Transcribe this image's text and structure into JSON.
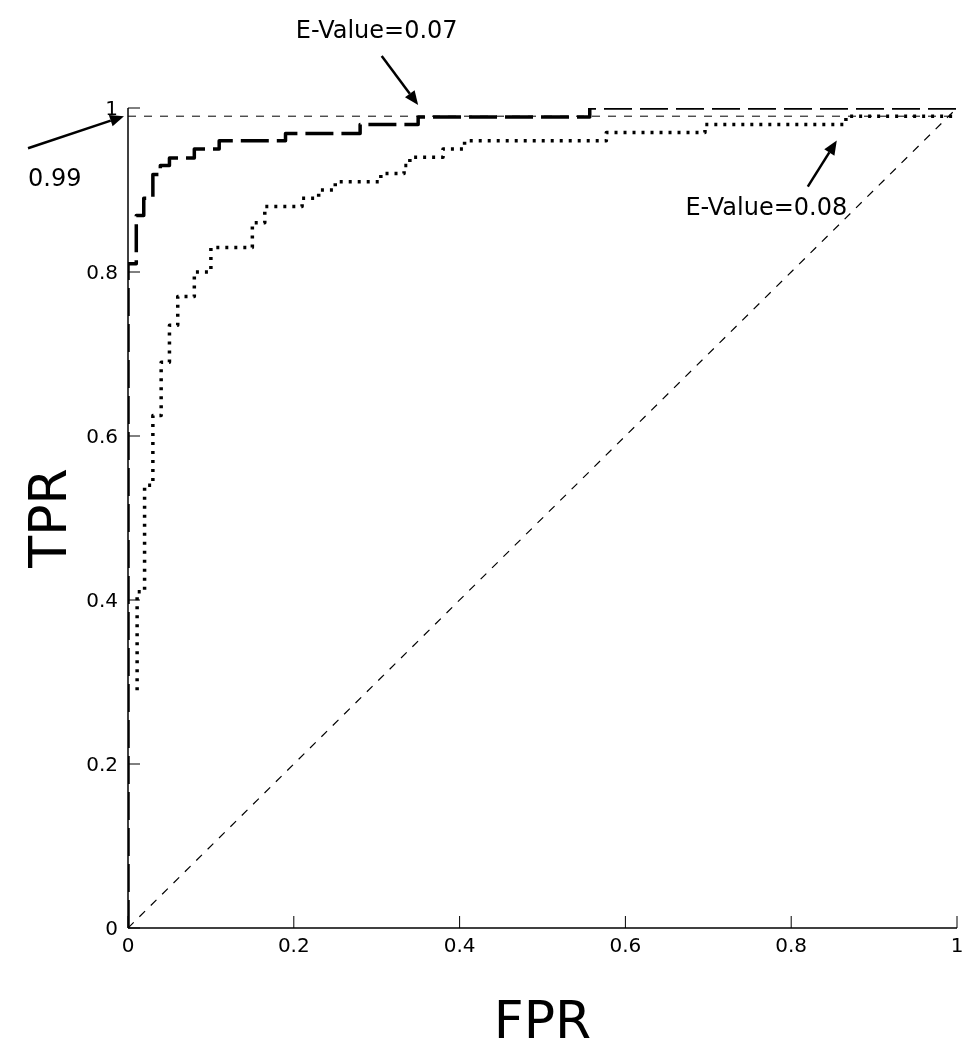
{
  "chart_data": {
    "type": "line",
    "xlabel": "FPR",
    "ylabel": "TPR",
    "xlim": [
      0,
      1
    ],
    "ylim": [
      0,
      1
    ],
    "xticks": [
      0,
      0.2,
      0.4,
      0.6,
      0.8,
      1
    ],
    "yticks": [
      0,
      0.2,
      0.4,
      0.6,
      0.8,
      1
    ],
    "grid": false,
    "marker": "none",
    "series": [
      {
        "type": "step",
        "color": "#000000",
        "line_style": "dashed",
        "x": [
          0,
          0,
          0.01,
          0.019,
          0.03,
          0.039,
          0.05,
          0.08,
          0.11,
          0.19,
          0.28,
          0.35,
          0.557,
          1
        ],
        "values": [
          0,
          0.81,
          0.869,
          0.89,
          0.919,
          0.93,
          0.939,
          0.95,
          0.96,
          0.969,
          0.98,
          0.989,
          1,
          1
        ]
      },
      {
        "type": "step",
        "color": "#000000",
        "line_style": "dotted",
        "x": [
          0.011,
          0.011,
          0.02,
          0.03,
          0.04,
          0.05,
          0.06,
          0.08,
          0.1,
          0.15,
          0.165,
          0.21,
          0.23,
          0.25,
          0.305,
          0.333,
          0.34,
          0.38,
          0.406,
          0.577,
          0.696,
          0.866,
          1
        ],
        "values": [
          0.29,
          0.41,
          0.54,
          0.625,
          0.69,
          0.735,
          0.77,
          0.8,
          0.83,
          0.86,
          0.88,
          0.89,
          0.9,
          0.91,
          0.92,
          0.93,
          0.94,
          0.95,
          0.96,
          0.97,
          0.98,
          0.99,
          0.99
        ]
      },
      {
        "type": "line",
        "color": "#000000",
        "line_style": "dashed",
        "x": [
          0,
          1
        ],
        "values": [
          0,
          1
        ]
      }
    ],
    "ref_lines": [
      {
        "axis": "y",
        "value": 0.99,
        "label": "0.99",
        "line_style": "dashed",
        "color": "#000000"
      }
    ],
    "annotations": [
      "E-Value=0.07",
      "E-Value=0.08"
    ]
  }
}
